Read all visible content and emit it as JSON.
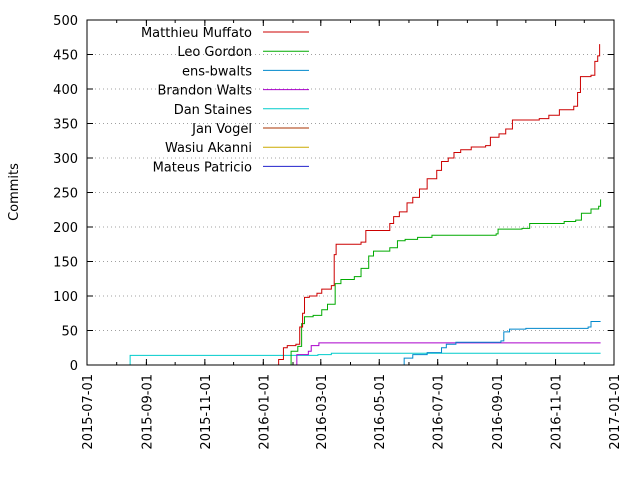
{
  "chart_data": {
    "type": "line",
    "title": "",
    "xlabel": "",
    "ylabel": "Commits",
    "xlim": [
      "2015-07-01",
      "2017-01-01"
    ],
    "ylim": [
      0,
      500
    ],
    "y_ticks": [
      0,
      50,
      100,
      150,
      200,
      250,
      300,
      350,
      400,
      450,
      500
    ],
    "x_ticks": [
      "2015-07-01",
      "2015-09-01",
      "2015-11-01",
      "2016-01-01",
      "2016-03-01",
      "2016-05-01",
      "2016-07-01",
      "2016-09-01",
      "2016-11-01",
      "2017-01-01"
    ],
    "grid": "horizontal dotted",
    "legend_position": "top-left",
    "step": true,
    "series": [
      {
        "name": "Matthieu Muffato",
        "color": "#cc0000",
        "points": [
          [
            "2015-07-01",
            0
          ],
          [
            "2016-01-13",
            0
          ],
          [
            "2016-01-17",
            8
          ],
          [
            "2016-01-22",
            25
          ],
          [
            "2016-01-26",
            28
          ],
          [
            "2016-02-04",
            30
          ],
          [
            "2016-02-08",
            55
          ],
          [
            "2016-02-11",
            75
          ],
          [
            "2016-02-13",
            98
          ],
          [
            "2016-02-18",
            100
          ],
          [
            "2016-02-26",
            104
          ],
          [
            "2016-03-02",
            110
          ],
          [
            "2016-03-12",
            115
          ],
          [
            "2016-03-15",
            160
          ],
          [
            "2016-03-17",
            175
          ],
          [
            "2016-04-12",
            178
          ],
          [
            "2016-04-17",
            195
          ],
          [
            "2016-05-01",
            195
          ],
          [
            "2016-05-12",
            205
          ],
          [
            "2016-05-16",
            215
          ],
          [
            "2016-05-22",
            222
          ],
          [
            "2016-05-30",
            235
          ],
          [
            "2016-06-05",
            243
          ],
          [
            "2016-06-12",
            255
          ],
          [
            "2016-06-20",
            270
          ],
          [
            "2016-06-30",
            282
          ],
          [
            "2016-07-05",
            295
          ],
          [
            "2016-07-12",
            300
          ],
          [
            "2016-07-18",
            308
          ],
          [
            "2016-07-25",
            312
          ],
          [
            "2016-08-05",
            316
          ],
          [
            "2016-08-20",
            318
          ],
          [
            "2016-08-25",
            330
          ],
          [
            "2016-09-03",
            335
          ],
          [
            "2016-09-10",
            342
          ],
          [
            "2016-09-17",
            355
          ],
          [
            "2016-10-15",
            357
          ],
          [
            "2016-10-25",
            362
          ],
          [
            "2016-11-05",
            370
          ],
          [
            "2016-11-20",
            375
          ],
          [
            "2016-11-24",
            395
          ],
          [
            "2016-11-27",
            418
          ],
          [
            "2016-12-08",
            420
          ],
          [
            "2016-12-12",
            440
          ],
          [
            "2016-12-15",
            448
          ],
          [
            "2016-12-17",
            465
          ]
        ]
      },
      {
        "name": "Leo Gordon",
        "color": "#00aa00",
        "points": [
          [
            "2015-07-01",
            0
          ],
          [
            "2016-01-26",
            0
          ],
          [
            "2016-01-30",
            20
          ],
          [
            "2016-02-06",
            27
          ],
          [
            "2016-02-10",
            60
          ],
          [
            "2016-02-13",
            70
          ],
          [
            "2016-02-22",
            72
          ],
          [
            "2016-03-02",
            80
          ],
          [
            "2016-03-08",
            88
          ],
          [
            "2016-03-16",
            118
          ],
          [
            "2016-03-22",
            124
          ],
          [
            "2016-04-05",
            128
          ],
          [
            "2016-04-12",
            140
          ],
          [
            "2016-04-20",
            158
          ],
          [
            "2016-04-25",
            165
          ],
          [
            "2016-05-12",
            170
          ],
          [
            "2016-05-20",
            180
          ],
          [
            "2016-05-28",
            182
          ],
          [
            "2016-06-10",
            185
          ],
          [
            "2016-06-25",
            188
          ],
          [
            "2016-08-31",
            190
          ],
          [
            "2016-09-02",
            197
          ],
          [
            "2016-09-27",
            198
          ],
          [
            "2016-10-05",
            205
          ],
          [
            "2016-11-10",
            208
          ],
          [
            "2016-11-22",
            210
          ],
          [
            "2016-11-28",
            220
          ],
          [
            "2016-12-08",
            226
          ],
          [
            "2016-12-16",
            230
          ],
          [
            "2016-12-18",
            240
          ]
        ]
      },
      {
        "name": "ens-bwalts",
        "color": "#0088cc",
        "points": [
          [
            "2015-07-01",
            0
          ],
          [
            "2016-05-25",
            0
          ],
          [
            "2016-05-27",
            10
          ],
          [
            "2016-06-05",
            15
          ],
          [
            "2016-06-20",
            18
          ],
          [
            "2016-07-05",
            25
          ],
          [
            "2016-07-10",
            30
          ],
          [
            "2016-07-20",
            33
          ],
          [
            "2016-08-01",
            33
          ],
          [
            "2016-09-05",
            35
          ],
          [
            "2016-09-08",
            48
          ],
          [
            "2016-09-14",
            52
          ],
          [
            "2016-10-01",
            53
          ],
          [
            "2016-12-05",
            55
          ],
          [
            "2016-12-08",
            63
          ],
          [
            "2016-12-18",
            63
          ]
        ]
      },
      {
        "name": "Brandon Walts",
        "color": "#aa00cc",
        "points": [
          [
            "2015-07-01",
            0
          ],
          [
            "2016-02-03",
            0
          ],
          [
            "2016-02-05",
            15
          ],
          [
            "2016-02-17",
            20
          ],
          [
            "2016-02-20",
            28
          ],
          [
            "2016-02-28",
            32
          ],
          [
            "2016-07-01",
            32
          ],
          [
            "2016-12-18",
            32
          ]
        ]
      },
      {
        "name": "Dan Staines",
        "color": "#00cccc",
        "points": [
          [
            "2015-07-01",
            0
          ],
          [
            "2015-08-13",
            0
          ],
          [
            "2015-08-15",
            14
          ],
          [
            "2016-01-25",
            14
          ],
          [
            "2016-02-27",
            15
          ],
          [
            "2016-03-12",
            17
          ],
          [
            "2016-12-18",
            17
          ]
        ]
      },
      {
        "name": "Jan Vogel",
        "color": "#aa3300",
        "points": [
          [
            "2015-07-01",
            0
          ],
          [
            "2015-10-01",
            0
          ],
          [
            "2016-12-18",
            0
          ]
        ]
      },
      {
        "name": "Wasiu Akanni",
        "color": "#ccaa00",
        "points": [
          [
            "2015-07-01",
            0
          ],
          [
            "2016-12-18",
            0
          ]
        ]
      },
      {
        "name": "Mateus Patricio",
        "color": "#2222cc",
        "points": [
          [
            "2015-07-01",
            0
          ],
          [
            "2016-12-18",
            0
          ]
        ]
      }
    ]
  }
}
